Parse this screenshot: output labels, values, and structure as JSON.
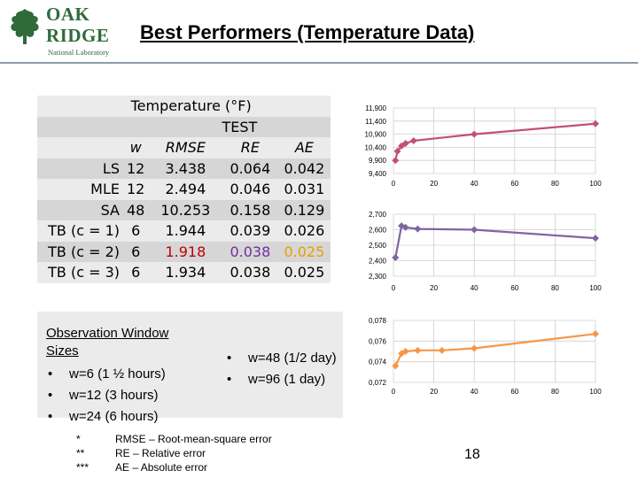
{
  "logo": {
    "line1": "OAK",
    "line2": "RIDGE",
    "line3": "National Laboratory"
  },
  "title": "Best Performers (Temperature Data)",
  "table": {
    "header1": "Temperature (°F)",
    "header2": "TEST",
    "columns": [
      "w",
      "RMSE",
      "RE",
      "AE"
    ],
    "rows": [
      {
        "label": "LS",
        "w": "12",
        "rmse": "3.438",
        "re": "0.064",
        "ae": "0.042"
      },
      {
        "label": "MLE",
        "w": "12",
        "rmse": "2.494",
        "re": "0.046",
        "ae": "0.031"
      },
      {
        "label": "SA",
        "w": "48",
        "rmse": "10.253",
        "re": "0.158",
        "ae": "0.129"
      },
      {
        "label": "TB (c = 1)",
        "w": "6",
        "rmse": "1.944",
        "re": "0.039",
        "ae": "0.026"
      },
      {
        "label": "TB (c = 2)",
        "w": "6",
        "rmse": "1.918",
        "re": "0.038",
        "ae": "0.025"
      },
      {
        "label": "TB (c = 3)",
        "w": "6",
        "rmse": "1.934",
        "re": "0.038",
        "ae": "0.025"
      }
    ],
    "highlight_colors": {
      "rmse": "#c00000",
      "re": "#7030a0",
      "ae": "#e6a000"
    }
  },
  "observation": {
    "heading_line1": "Observation Window",
    "heading_line2": "Sizes",
    "bullet": "•",
    "left_items": [
      "w=6 (1 ½ hours)",
      "w=12 (3 hours)",
      "w=24 (6 hours)"
    ],
    "right_items": [
      "w=48 (1/2 day)",
      "w=96 (1 day)"
    ]
  },
  "notes": [
    {
      "mark": "*",
      "text": "RMSE – Root-mean-square error"
    },
    {
      "mark": "**",
      "text": "RE – Relative error"
    },
    {
      "mark": "***",
      "text": "AE – Absolute error"
    }
  ],
  "slide_number": "18",
  "chart_data": [
    {
      "type": "line",
      "color": "#c0507a",
      "x": [
        1,
        2,
        4,
        6,
        10,
        40,
        100
      ],
      "y": [
        9900,
        10250,
        10450,
        10550,
        10650,
        10900,
        11300
      ],
      "ylim": [
        9400,
        11900
      ],
      "yticks": [
        9400,
        9900,
        10400,
        10900,
        11400,
        11900
      ],
      "ytick_labels": [
        "9,400",
        "9,900",
        "10,400",
        "10,900",
        "11,400",
        "11,900"
      ],
      "xlim": [
        0,
        100
      ],
      "xticks": [
        0,
        20,
        40,
        60,
        80,
        100
      ],
      "xtick_labels": [
        "0",
        "20",
        "40",
        "60",
        "80",
        "100"
      ],
      "grid": true
    },
    {
      "type": "line",
      "color": "#8064a2",
      "x": [
        1,
        4,
        6,
        12,
        40,
        100
      ],
      "y": [
        2420,
        2625,
        2615,
        2605,
        2600,
        2545
      ],
      "ylim": [
        2300,
        2700
      ],
      "yticks": [
        2300,
        2400,
        2500,
        2600,
        2700
      ],
      "ytick_labels": [
        "2,300",
        "2,400",
        "2,500",
        "2,600",
        "2,700"
      ],
      "xlim": [
        0,
        100
      ],
      "xticks": [
        0,
        20,
        40,
        60,
        80,
        100
      ],
      "xtick_labels": [
        "0",
        "20",
        "40",
        "60",
        "80",
        "100"
      ],
      "grid": true
    },
    {
      "type": "line",
      "color": "#f79646",
      "x": [
        1,
        4,
        6,
        12,
        24,
        40,
        100
      ],
      "y": [
        0.0736,
        0.0748,
        0.075,
        0.0751,
        0.0751,
        0.0753,
        0.0767
      ],
      "ylim": [
        0.072,
        0.078
      ],
      "yticks": [
        0.072,
        0.074,
        0.076,
        0.078
      ],
      "ytick_labels": [
        "0,072",
        "0,074",
        "0,076",
        "0,078"
      ],
      "xlim": [
        0,
        100
      ],
      "xticks": [
        0,
        20,
        40,
        60,
        80,
        100
      ],
      "xtick_labels": [
        "0",
        "20",
        "40",
        "60",
        "80",
        "100"
      ],
      "grid": true
    }
  ]
}
